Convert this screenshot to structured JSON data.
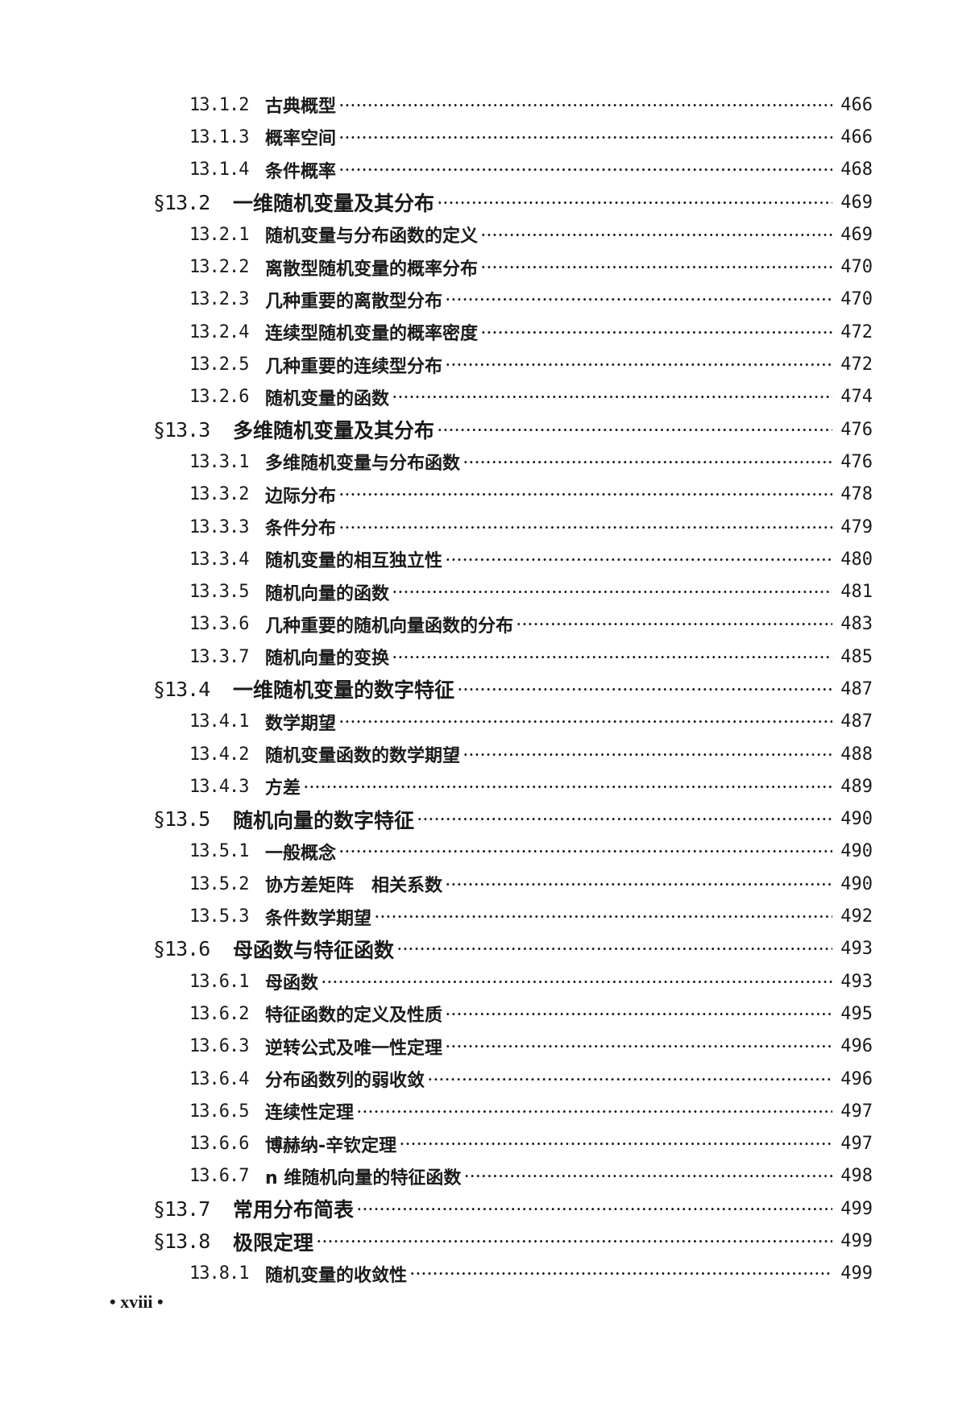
{
  "entries": [
    {
      "level": "sub",
      "number": "13.1.2",
      "title": "古典概型",
      "page": "466"
    },
    {
      "level": "sub",
      "number": "13.1.3",
      "title": "概率空间",
      "page": "466"
    },
    {
      "level": "sub",
      "number": "13.1.4",
      "title": "条件概率",
      "page": "468"
    },
    {
      "level": "sec",
      "number": "§13.2",
      "title": "一维随机变量及其分布",
      "page": "469"
    },
    {
      "level": "sub",
      "number": "13.2.1",
      "title": "随机变量与分布函数的定义",
      "page": "469"
    },
    {
      "level": "sub",
      "number": "13.2.2",
      "title": "离散型随机变量的概率分布",
      "page": "470"
    },
    {
      "level": "sub",
      "number": "13.2.3",
      "title": "几种重要的离散型分布",
      "page": "470"
    },
    {
      "level": "sub",
      "number": "13.2.4",
      "title": "连续型随机变量的概率密度",
      "page": "472"
    },
    {
      "level": "sub",
      "number": "13.2.5",
      "title": "几种重要的连续型分布",
      "page": "472"
    },
    {
      "level": "sub",
      "number": "13.2.6",
      "title": "随机变量的函数",
      "page": "474"
    },
    {
      "level": "sec",
      "number": "§13.3",
      "title": "多维随机变量及其分布",
      "page": "476"
    },
    {
      "level": "sub",
      "number": "13.3.1",
      "title": "多维随机变量与分布函数",
      "page": "476"
    },
    {
      "level": "sub",
      "number": "13.3.2",
      "title": "边际分布",
      "page": "478"
    },
    {
      "level": "sub",
      "number": "13.3.3",
      "title": "条件分布",
      "page": "479"
    },
    {
      "level": "sub",
      "number": "13.3.4",
      "title": "随机变量的相互独立性",
      "page": "480"
    },
    {
      "level": "sub",
      "number": "13.3.5",
      "title": "随机向量的函数",
      "page": "481"
    },
    {
      "level": "sub",
      "number": "13.3.6",
      "title": "几种重要的随机向量函数的分布",
      "page": "483"
    },
    {
      "level": "sub",
      "number": "13.3.7",
      "title": "随机向量的变换",
      "page": "485"
    },
    {
      "level": "sec",
      "number": "§13.4",
      "title": "一维随机变量的数字特征",
      "page": "487"
    },
    {
      "level": "sub",
      "number": "13.4.1",
      "title": "数学期望",
      "page": "487"
    },
    {
      "level": "sub",
      "number": "13.4.2",
      "title": "随机变量函数的数学期望",
      "page": "488"
    },
    {
      "level": "sub",
      "number": "13.4.3",
      "title": "方差",
      "page": "489"
    },
    {
      "level": "sec",
      "number": "§13.5",
      "title": "随机向量的数字特征",
      "page": "490"
    },
    {
      "level": "sub",
      "number": "13.5.1",
      "title": "一般概念",
      "page": "490"
    },
    {
      "level": "sub",
      "number": "13.5.2",
      "title": "协方差矩阵　相关系数",
      "page": "490"
    },
    {
      "level": "sub",
      "number": "13.5.3",
      "title": "条件数学期望",
      "page": "492"
    },
    {
      "level": "sec",
      "number": "§13.6",
      "title": "母函数与特征函数",
      "page": "493"
    },
    {
      "level": "sub",
      "number": "13.6.1",
      "title": "母函数",
      "page": "493"
    },
    {
      "level": "sub",
      "number": "13.6.2",
      "title": "特征函数的定义及性质",
      "page": "495"
    },
    {
      "level": "sub",
      "number": "13.6.3",
      "title": "逆转公式及唯一性定理",
      "page": "496"
    },
    {
      "level": "sub",
      "number": "13.6.4",
      "title": "分布函数列的弱收敛",
      "page": "496"
    },
    {
      "level": "sub",
      "number": "13.6.5",
      "title": "连续性定理",
      "page": "497"
    },
    {
      "level": "sub",
      "number": "13.6.6",
      "title": "博赫纳-辛钦定理",
      "page": "497"
    },
    {
      "level": "sub",
      "number": "13.6.7",
      "title": "n 维随机向量的特征函数",
      "page": "498"
    },
    {
      "level": "sec",
      "number": "§13.7",
      "title": "常用分布简表",
      "page": "499"
    },
    {
      "level": "sec",
      "number": "§13.8",
      "title": "极限定理",
      "page": "499"
    },
    {
      "level": "sub",
      "number": "13.8.1",
      "title": "随机变量的收敛性",
      "page": "499"
    }
  ],
  "footer": {
    "page_label": "• xviii •"
  }
}
